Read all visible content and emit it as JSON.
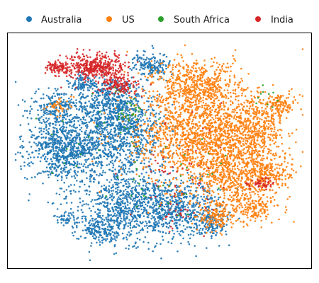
{
  "chart_data": {
    "type": "scatter",
    "title": "",
    "xlabel": "",
    "ylabel": "",
    "axes_visible": false,
    "ticks": false,
    "grid": false,
    "xlim": [
      0,
      100
    ],
    "ylim": [
      0,
      100
    ],
    "legend": {
      "placement": "top",
      "orientation": "horizontal",
      "frameless": true
    },
    "series": [
      {
        "name": "Australia",
        "color": "#1f77b4",
        "point_counts": "dense (thousands)",
        "regions": [
          {
            "cx": 19,
            "cy": 52,
            "sx": 7,
            "sy": 9,
            "n": 950
          },
          {
            "cx": 38,
            "cy": 58,
            "sx": 7,
            "sy": 9,
            "n": 750
          },
          {
            "cx": 39,
            "cy": 25,
            "sx": 8,
            "sy": 8,
            "n": 750
          },
          {
            "cx": 57,
            "cy": 24,
            "sx": 7,
            "sy": 7,
            "n": 550
          },
          {
            "cx": 33,
            "cy": 72,
            "sx": 6,
            "sy": 5,
            "n": 380
          },
          {
            "cx": 47,
            "cy": 88,
            "sx": 3.5,
            "sy": 3,
            "n": 170
          },
          {
            "cx": 15,
            "cy": 70,
            "sx": 4,
            "sy": 4,
            "n": 160
          },
          {
            "cx": 24,
            "cy": 80,
            "sx": 2.5,
            "sy": 2,
            "n": 90
          },
          {
            "cx": 30,
            "cy": 15,
            "sx": 4,
            "sy": 3,
            "n": 170
          },
          {
            "cx": 68,
            "cy": 17,
            "sx": 3,
            "sy": 3,
            "n": 100
          },
          {
            "cx": 18,
            "cy": 20,
            "sx": 2,
            "sy": 2,
            "n": 45
          }
        ]
      },
      {
        "name": "US",
        "color": "#ff7f0e",
        "point_counts": "dense (thousands)",
        "regions": [
          {
            "cx": 64,
            "cy": 58,
            "sx": 11,
            "sy": 12,
            "n": 1500
          },
          {
            "cx": 76,
            "cy": 40,
            "sx": 8,
            "sy": 10,
            "n": 750
          },
          {
            "cx": 63,
            "cy": 80,
            "sx": 7,
            "sy": 5,
            "n": 450
          },
          {
            "cx": 83,
            "cy": 62,
            "sx": 5,
            "sy": 6,
            "n": 320
          },
          {
            "cx": 87,
            "cy": 40,
            "sx": 4,
            "sy": 4,
            "n": 180
          },
          {
            "cx": 91,
            "cy": 70,
            "sx": 3,
            "sy": 2.5,
            "n": 110
          },
          {
            "cx": 70,
            "cy": 20,
            "sx": 4,
            "sy": 3,
            "n": 130
          },
          {
            "cx": 83,
            "cy": 24,
            "sx": 3,
            "sy": 3,
            "n": 100
          },
          {
            "cx": 16,
            "cy": 70,
            "sx": 2,
            "sy": 2,
            "n": 40
          }
        ]
      },
      {
        "name": "South Africa",
        "color": "#2ca02c",
        "point_counts": "sparse (tens)",
        "regions": [
          {
            "cx": 40,
            "cy": 66,
            "sx": 3,
            "sy": 4,
            "n": 35
          },
          {
            "cx": 55,
            "cy": 36,
            "sx": 10,
            "sy": 10,
            "n": 35
          },
          {
            "cx": 86,
            "cy": 72,
            "sx": 3,
            "sy": 3,
            "n": 10
          },
          {
            "cx": 25,
            "cy": 55,
            "sx": 10,
            "sy": 10,
            "n": 20
          }
        ]
      },
      {
        "name": "India",
        "color": "#d62728",
        "point_counts": "hundreds",
        "regions": [
          {
            "cx": 28,
            "cy": 87,
            "sx": 5,
            "sy": 3,
            "n": 420
          },
          {
            "cx": 15,
            "cy": 87,
            "sx": 2,
            "sy": 1.5,
            "n": 90
          },
          {
            "cx": 37,
            "cy": 79,
            "sx": 3.5,
            "sy": 2,
            "n": 130
          },
          {
            "cx": 85,
            "cy": 35,
            "sx": 2.5,
            "sy": 1.2,
            "n": 50
          },
          {
            "cx": 58,
            "cy": 38,
            "sx": 8,
            "sy": 12,
            "n": 60
          },
          {
            "cx": 55,
            "cy": 22,
            "sx": 3,
            "sy": 3,
            "n": 15
          }
        ]
      }
    ]
  }
}
